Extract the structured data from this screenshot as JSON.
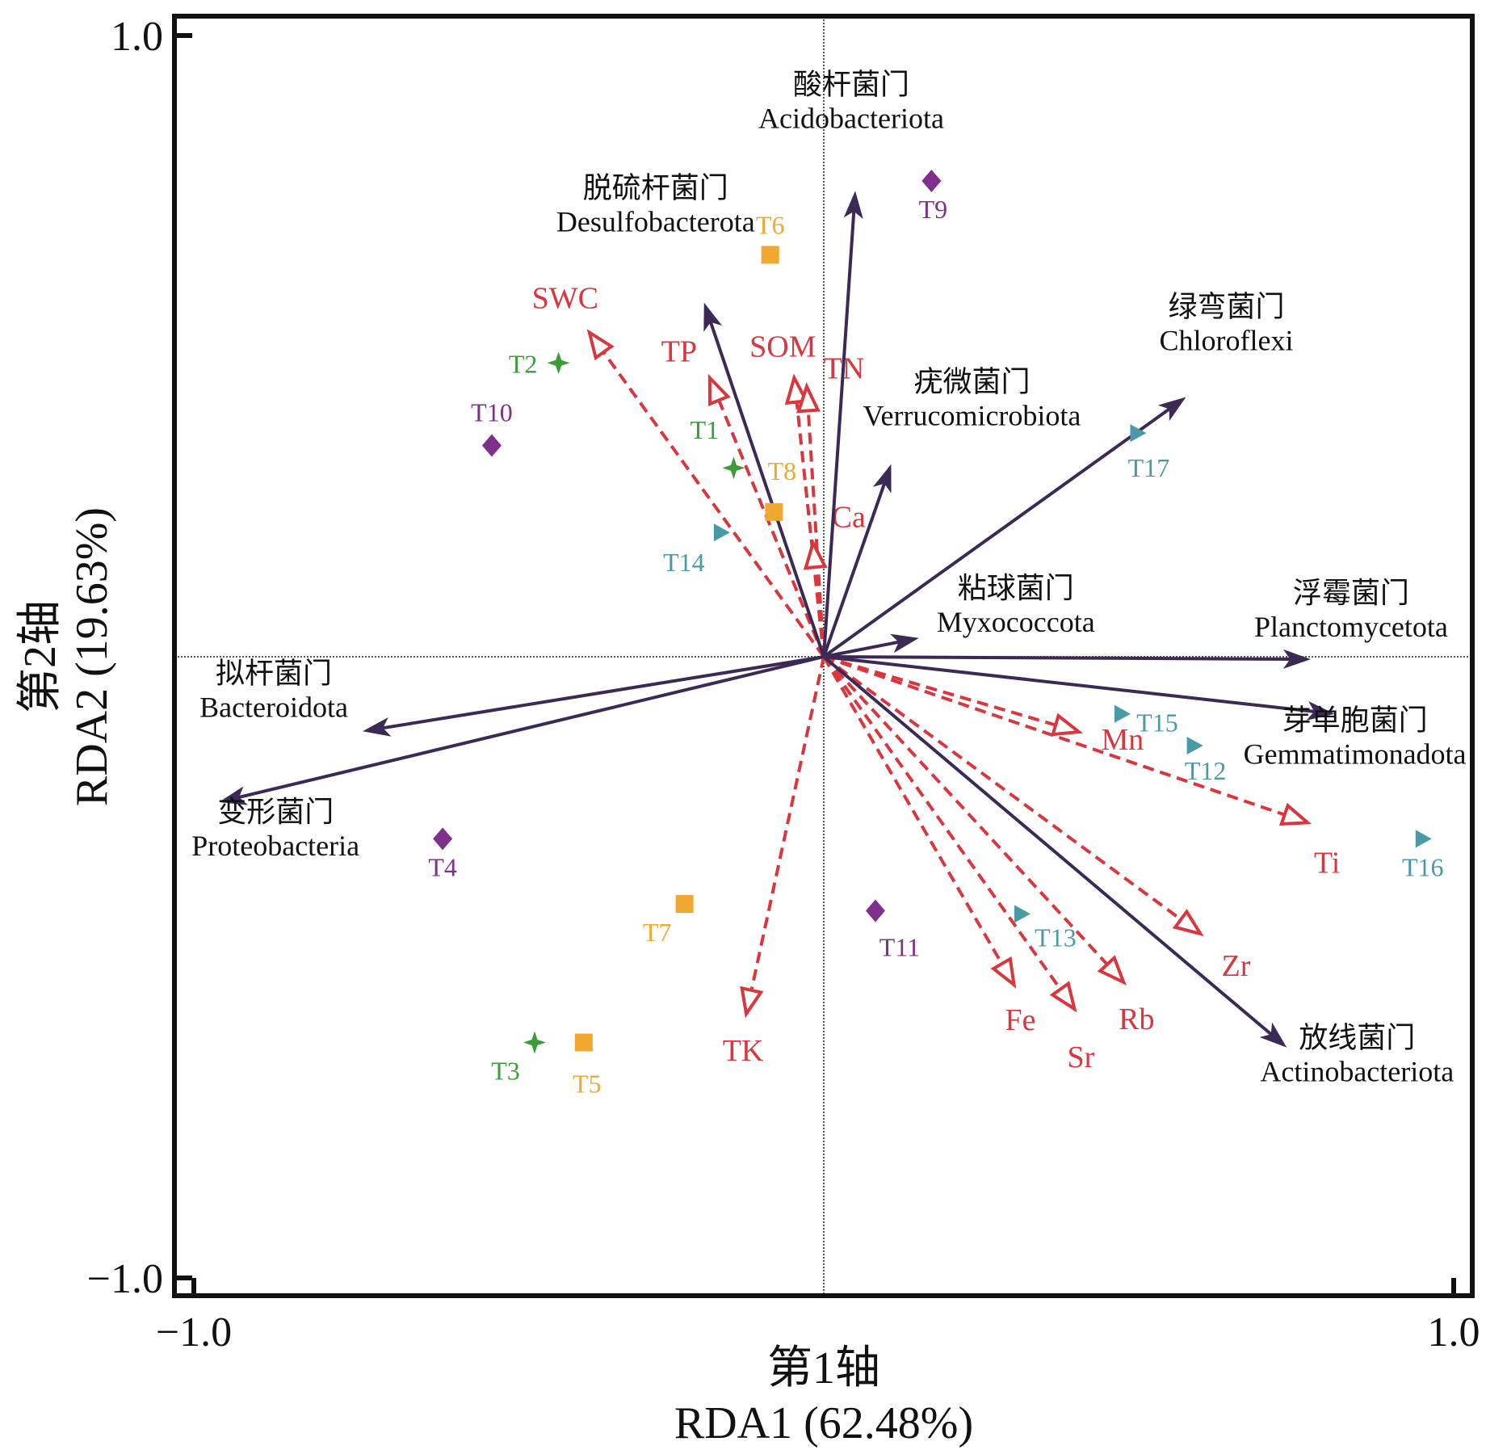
{
  "chart_data": {
    "type": "scatter",
    "subtype": "RDA biplot",
    "title": "",
    "xlabel": {
      "cn": "第1轴",
      "en": "RDA1 (62.48%)"
    },
    "ylabel": {
      "cn": "第2轴",
      "en": "RDA2 (19.63%)"
    },
    "xlim": [
      -1.0,
      1.0
    ],
    "ylim": [
      -1.0,
      1.0
    ],
    "x_ticks": [
      {
        "value": -1.0,
        "label": "−1.0"
      },
      {
        "value": 1.0,
        "label": "1.0"
      }
    ],
    "y_ticks": [
      {
        "value": -1.0,
        "label": "−1.0"
      },
      {
        "value": 1.0,
        "label": "1.0"
      }
    ],
    "zero_lines": true,
    "grid": false,
    "legend": "none",
    "colors": {
      "phylum_arrow": "#3b2a55",
      "env_arrow": "#d9363e",
      "group_green": "#3f9a3a",
      "group_orange": "#f0a830",
      "group_purple": "#7f2f8c",
      "group_teal": "#4a9aa5",
      "axis": "#111111"
    },
    "phylum_vectors": [
      {
        "cn": "酸杆菌门",
        "en": "Acidobacteriota",
        "x": 0.05,
        "y": 0.75
      },
      {
        "cn": "脱硫杆菌门",
        "en": "Desulfobacterota",
        "x": -0.19,
        "y": 0.57
      },
      {
        "cn": "绿弯菌门",
        "en": "Chloroflexi",
        "x": 0.575,
        "y": 0.418
      },
      {
        "cn": "疣微菌门",
        "en": "Verrucomicrobiota",
        "x": 0.107,
        "y": 0.31
      },
      {
        "cn": "粘球菌门",
        "en": "Myxococcota",
        "x": 0.151,
        "y": 0.03
      },
      {
        "cn": "浮霉菌门",
        "en": "Planctomycetota",
        "x": 0.773,
        "y": -0.004
      },
      {
        "cn": "芽单胞菌门",
        "en": "Gemmatimonadota",
        "x": 0.811,
        "y": -0.092
      },
      {
        "cn": "放线菌门",
        "en": "Actinobacteriota",
        "x": 0.735,
        "y": -0.629
      },
      {
        "cn": "拟杆菌门",
        "en": "Bacteroidota",
        "x": -0.732,
        "y": -0.12
      },
      {
        "cn": "变形菌门",
        "en": "Proteobacteria",
        "x": -0.96,
        "y": -0.234
      }
    ],
    "env_vectors": [
      {
        "name": "SWC",
        "x": -0.372,
        "y": 0.522
      },
      {
        "name": "TP",
        "x": -0.181,
        "y": 0.449
      },
      {
        "name": "SOM",
        "x": -0.047,
        "y": 0.449
      },
      {
        "name": "TN",
        "x": -0.027,
        "y": 0.435
      },
      {
        "name": "Ca",
        "x": -0.017,
        "y": 0.183
      },
      {
        "name": "TK",
        "x": -0.123,
        "y": -0.575
      },
      {
        "name": "Fe",
        "x": 0.302,
        "y": -0.528
      },
      {
        "name": "Sr",
        "x": 0.398,
        "y": -0.567
      },
      {
        "name": "Rb",
        "x": 0.476,
        "y": -0.524
      },
      {
        "name": "Zr",
        "x": 0.598,
        "y": -0.446
      },
      {
        "name": "Mn",
        "x": 0.405,
        "y": -0.121
      },
      {
        "name": "Ti",
        "x": 0.768,
        "y": -0.267
      }
    ],
    "samples": [
      {
        "name": "T1",
        "group": "green",
        "marker": "star",
        "x": -0.143,
        "y": 0.304
      },
      {
        "name": "T2",
        "group": "green",
        "marker": "star",
        "x": -0.421,
        "y": 0.473
      },
      {
        "name": "T3",
        "group": "green",
        "marker": "star",
        "x": -0.459,
        "y": -0.621
      },
      {
        "name": "T4",
        "group": "purple",
        "marker": "diamond",
        "x": -0.605,
        "y": -0.293
      },
      {
        "name": "T5",
        "group": "orange",
        "marker": "square",
        "x": -0.381,
        "y": -0.621
      },
      {
        "name": "T6",
        "group": "orange",
        "marker": "square",
        "x": -0.085,
        "y": 0.647
      },
      {
        "name": "T7",
        "group": "orange",
        "marker": "square",
        "x": -0.221,
        "y": -0.398
      },
      {
        "name": "T8",
        "group": "orange",
        "marker": "square",
        "x": -0.079,
        "y": 0.233
      },
      {
        "name": "T9",
        "group": "purple",
        "marker": "diamond",
        "x": 0.171,
        "y": 0.766
      },
      {
        "name": "T10",
        "group": "purple",
        "marker": "diamond",
        "x": -0.527,
        "y": 0.34
      },
      {
        "name": "T11",
        "group": "purple",
        "marker": "diamond",
        "x": 0.082,
        "y": -0.409
      },
      {
        "name": "T12",
        "group": "teal",
        "marker": "triangle",
        "x": 0.588,
        "y": -0.143
      },
      {
        "name": "T13",
        "group": "teal",
        "marker": "triangle",
        "x": 0.314,
        "y": -0.414
      },
      {
        "name": "T14",
        "group": "teal",
        "marker": "triangle",
        "x": -0.163,
        "y": 0.2
      },
      {
        "name": "T15",
        "group": "teal",
        "marker": "triangle",
        "x": 0.473,
        "y": -0.092
      },
      {
        "name": "T16",
        "group": "teal",
        "marker": "triangle",
        "x": 0.951,
        "y": -0.293
      },
      {
        "name": "T17",
        "group": "teal",
        "marker": "triangle",
        "x": 0.498,
        "y": 0.36
      }
    ]
  }
}
